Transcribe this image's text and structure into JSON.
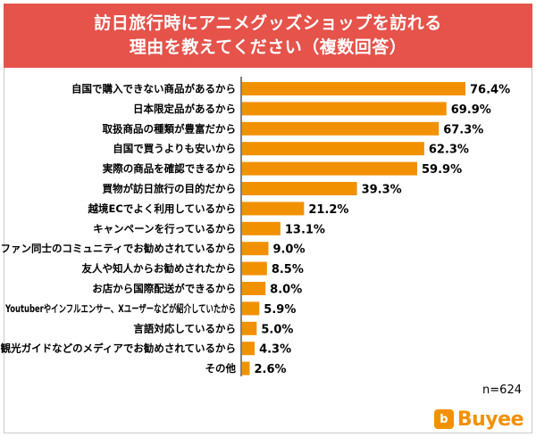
{
  "chart_data": {
    "type": "bar",
    "orientation": "horizontal",
    "title_lines": [
      "訪日旅行時にアニメグッズショップを訪れる",
      "理由を教えてください（複数回答）"
    ],
    "categories": [
      "自国で購入できない商品があるから",
      "日本限定品があるから",
      "取扱商品の種類が豊富だから",
      "自国で買うよりも安いから",
      "実際の商品を確認できるから",
      "買物が訪日旅行の目的だから",
      "越境ECでよく利用しているから",
      "キャンペーンを行っているから",
      "ファン同士のコミュニティでお勧めされているから",
      "友人や知人からお勧めされたから",
      "お店から国際配送ができるから",
      "Youtuberやインフルエンサー、Xユーザーなどが紹介していたから",
      "言語対応しているから",
      "観光ガイドなどのメディアでお勧めされているから",
      "その他"
    ],
    "values": [
      76.4,
      69.9,
      67.3,
      62.3,
      59.9,
      39.3,
      21.2,
      13.1,
      9.0,
      8.5,
      8.0,
      5.9,
      5.0,
      4.3,
      2.6
    ],
    "value_labels": [
      "76.4%",
      "69.9%",
      "67.3%",
      "62.3%",
      "59.9%",
      "39.3%",
      "21.2%",
      "13.1%",
      "9.0%",
      "8.5%",
      "8.0%",
      "5.9%",
      "5.0%",
      "4.3%",
      "2.6%"
    ],
    "xlim": [
      0,
      80
    ],
    "unit": "%",
    "bar_color": "#f29100",
    "grid": false,
    "legend": "none"
  },
  "note": {
    "sample_size": "n=624"
  },
  "brand": {
    "logo_mark": "b",
    "logo_text": "Buyee",
    "color": "#f29100"
  },
  "banner": {
    "color": "#e5534b"
  }
}
